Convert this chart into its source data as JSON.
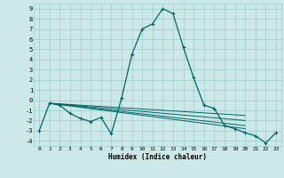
{
  "xlabel": "Humidex (Indice chaleur)",
  "bg_color": "#cce8e8",
  "grid_color": "#99cccc",
  "line_color": "#006666",
  "xlim": [
    -0.5,
    23.5
  ],
  "ylim": [
    -4.5,
    9.5
  ],
  "xticks": [
    0,
    1,
    2,
    3,
    4,
    5,
    6,
    7,
    8,
    9,
    10,
    11,
    12,
    13,
    14,
    15,
    16,
    17,
    18,
    19,
    20,
    21,
    22,
    23
  ],
  "yticks": [
    -4,
    -3,
    -2,
    -1,
    0,
    1,
    2,
    3,
    4,
    5,
    6,
    7,
    8,
    9
  ],
  "series": [
    [
      0,
      -3.0
    ],
    [
      1,
      -0.3
    ],
    [
      2,
      -0.5
    ],
    [
      3,
      -1.3
    ],
    [
      4,
      -1.8
    ],
    [
      5,
      -2.1
    ],
    [
      6,
      -1.7
    ],
    [
      7,
      -3.3
    ],
    [
      8,
      0.2
    ],
    [
      9,
      4.5
    ],
    [
      10,
      7.0
    ],
    [
      11,
      7.5
    ],
    [
      12,
      9.0
    ],
    [
      13,
      8.5
    ],
    [
      14,
      5.2
    ],
    [
      15,
      2.2
    ],
    [
      16,
      -0.5
    ],
    [
      17,
      -0.8
    ],
    [
      18,
      -2.5
    ],
    [
      19,
      -2.8
    ],
    [
      20,
      -3.2
    ],
    [
      21,
      -3.5
    ],
    [
      22,
      -4.2
    ],
    [
      23,
      -3.2
    ]
  ],
  "extra_lines": [
    [
      [
        1,
        -0.3
      ],
      [
        20,
        -1.5
      ]
    ],
    [
      [
        1,
        -0.3
      ],
      [
        20,
        -2.0
      ]
    ],
    [
      [
        1,
        -0.3
      ],
      [
        20,
        -2.5
      ]
    ],
    [
      [
        1,
        -0.3
      ],
      [
        20,
        -2.8
      ]
    ]
  ]
}
